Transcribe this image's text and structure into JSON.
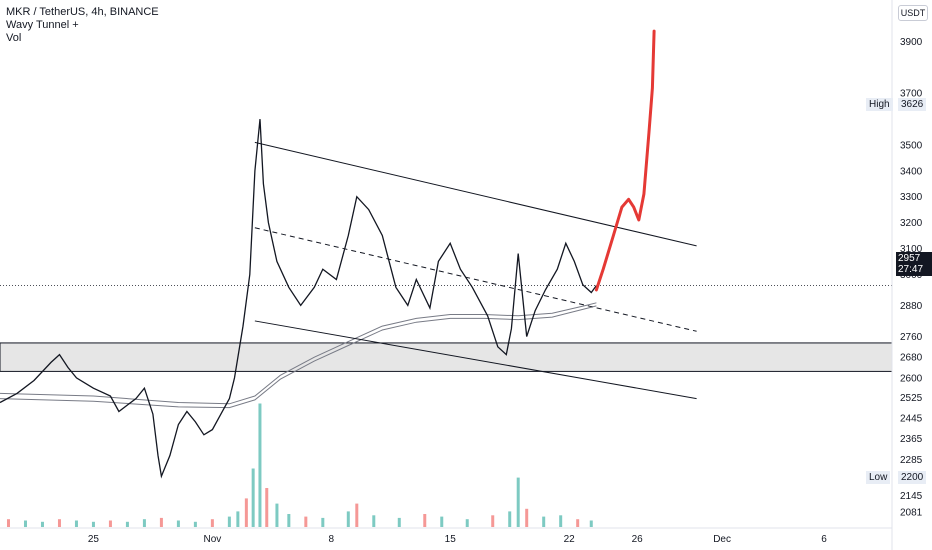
{
  "legend": {
    "symbol_line": "MKR / TetherUS, 4h, BINANCE",
    "indicator_1": "Wavy Tunnel +",
    "indicator_2": "Vol"
  },
  "currency_label": "USDT",
  "high_marker": {
    "label": "High",
    "value": "3626"
  },
  "low_marker": {
    "label": "Low",
    "value": "2200"
  },
  "last_price": {
    "value": "2957",
    "countdown": "27:47"
  },
  "colors": {
    "candle": "#131722",
    "volume_up": "#26a69a",
    "volume_down": "#ef5350",
    "tunnel": "#787b86",
    "drawing_red": "#e53935",
    "zone_fill": "#e0e0e0"
  },
  "chart_data": {
    "type": "line",
    "ylim": [
      2020,
      4060
    ],
    "y_ticks": [
      3900,
      3700,
      3500,
      3400,
      3300,
      3200,
      3100,
      3000,
      2880,
      2760,
      2680,
      2600,
      2525,
      2445,
      2365,
      2285,
      2145,
      2081
    ],
    "x_ticks": [
      "25",
      "Nov",
      "8",
      "15",
      "22",
      "26",
      "Dec",
      "6"
    ],
    "x_tick_days": [
      -7,
      0,
      7,
      14,
      21,
      25,
      30,
      36
    ],
    "x_range_days": [
      -12.5,
      40
    ],
    "price_path": [
      [
        -12.5,
        2505
      ],
      [
        -11.5,
        2540
      ],
      [
        -10.5,
        2590
      ],
      [
        -9.5,
        2660
      ],
      [
        -9.0,
        2690
      ],
      [
        -8.5,
        2640
      ],
      [
        -8.0,
        2600
      ],
      [
        -7.0,
        2560
      ],
      [
        -6.0,
        2530
      ],
      [
        -5.5,
        2470
      ],
      [
        -4.5,
        2520
      ],
      [
        -4.0,
        2560
      ],
      [
        -3.5,
        2460
      ],
      [
        -3.2,
        2300
      ],
      [
        -3.0,
        2220
      ],
      [
        -2.5,
        2300
      ],
      [
        -2.0,
        2420
      ],
      [
        -1.5,
        2470
      ],
      [
        -1.0,
        2430
      ],
      [
        -0.5,
        2380
      ],
      [
        0.0,
        2400
      ],
      [
        0.5,
        2460
      ],
      [
        1.0,
        2520
      ],
      [
        1.3,
        2600
      ],
      [
        1.8,
        2800
      ],
      [
        2.2,
        3000
      ],
      [
        2.5,
        3400
      ],
      [
        2.8,
        3600
      ],
      [
        3.0,
        3350
      ],
      [
        3.3,
        3200
      ],
      [
        3.8,
        3050
      ],
      [
        4.5,
        2950
      ],
      [
        5.2,
        2880
      ],
      [
        6.0,
        2950
      ],
      [
        6.5,
        3020
      ],
      [
        7.3,
        2980
      ],
      [
        8.0,
        3150
      ],
      [
        8.5,
        3300
      ],
      [
        9.2,
        3250
      ],
      [
        10.0,
        3150
      ],
      [
        10.8,
        2950
      ],
      [
        11.5,
        2880
      ],
      [
        12.0,
        2980
      ],
      [
        12.8,
        2870
      ],
      [
        13.3,
        3050
      ],
      [
        14.0,
        3120
      ],
      [
        14.6,
        3020
      ],
      [
        15.3,
        2950
      ],
      [
        16.2,
        2840
      ],
      [
        16.8,
        2720
      ],
      [
        17.3,
        2690
      ],
      [
        17.6,
        2790
      ],
      [
        18.0,
        3080
      ],
      [
        18.5,
        2760
      ],
      [
        19.0,
        2860
      ],
      [
        19.6,
        2940
      ],
      [
        20.3,
        3020
      ],
      [
        20.8,
        3120
      ],
      [
        21.3,
        3050
      ],
      [
        21.8,
        2960
      ],
      [
        22.3,
        2930
      ],
      [
        22.6,
        2957
      ]
    ],
    "tunnel_upper": [
      [
        -12.5,
        2540
      ],
      [
        -7.0,
        2530
      ],
      [
        -2.0,
        2505
      ],
      [
        1.0,
        2500
      ],
      [
        2.5,
        2530
      ],
      [
        4.0,
        2610
      ],
      [
        6.0,
        2680
      ],
      [
        8.0,
        2740
      ],
      [
        10.0,
        2800
      ],
      [
        12.0,
        2830
      ],
      [
        14.0,
        2845
      ],
      [
        16.0,
        2845
      ],
      [
        18.0,
        2840
      ],
      [
        20.0,
        2850
      ],
      [
        22.0,
        2880
      ],
      [
        22.6,
        2890
      ]
    ],
    "tunnel_lower": [
      [
        -12.5,
        2520
      ],
      [
        -7.0,
        2510
      ],
      [
        -2.0,
        2488
      ],
      [
        1.0,
        2485
      ],
      [
        2.5,
        2515
      ],
      [
        4.0,
        2595
      ],
      [
        6.0,
        2665
      ],
      [
        8.0,
        2725
      ],
      [
        10.0,
        2785
      ],
      [
        12.0,
        2815
      ],
      [
        14.0,
        2830
      ],
      [
        16.0,
        2830
      ],
      [
        18.0,
        2825
      ],
      [
        20.0,
        2835
      ],
      [
        22.0,
        2868
      ],
      [
        22.6,
        2878
      ]
    ],
    "channel_upper": [
      [
        2.5,
        3510
      ],
      [
        28.5,
        3110
      ]
    ],
    "channel_mid": [
      [
        2.5,
        3180
      ],
      [
        28.5,
        2780
      ]
    ],
    "channel_lower": [
      [
        2.5,
        2820
      ],
      [
        28.5,
        2520
      ]
    ],
    "zone": [
      2625,
      2735
    ],
    "forecast_path": [
      [
        22.6,
        2940
      ],
      [
        23.0,
        3020
      ],
      [
        23.6,
        3150
      ],
      [
        24.1,
        3260
      ],
      [
        24.5,
        3290
      ],
      [
        24.8,
        3260
      ],
      [
        25.1,
        3210
      ],
      [
        25.4,
        3310
      ],
      [
        25.7,
        3550
      ],
      [
        25.9,
        3720
      ],
      [
        26.0,
        3940
      ]
    ],
    "volume_series": {
      "max_volume": 100,
      "values": [
        [
          -12.0,
          6
        ],
        [
          -11.0,
          5
        ],
        [
          -10.0,
          4
        ],
        [
          -9.0,
          6
        ],
        [
          -8.0,
          5
        ],
        [
          -7.0,
          4
        ],
        [
          -6.0,
          5
        ],
        [
          -5.0,
          4
        ],
        [
          -4.0,
          6
        ],
        [
          -3.0,
          7
        ],
        [
          -2.0,
          5
        ],
        [
          -1.0,
          4
        ],
        [
          0.0,
          6
        ],
        [
          1.0,
          8
        ],
        [
          1.5,
          12
        ],
        [
          2.0,
          22
        ],
        [
          2.4,
          45
        ],
        [
          2.8,
          95
        ],
        [
          3.2,
          30
        ],
        [
          3.8,
          18
        ],
        [
          4.5,
          10
        ],
        [
          5.5,
          8
        ],
        [
          6.5,
          7
        ],
        [
          8.0,
          12
        ],
        [
          8.5,
          18
        ],
        [
          9.5,
          9
        ],
        [
          11.0,
          7
        ],
        [
          12.5,
          10
        ],
        [
          13.5,
          8
        ],
        [
          15.0,
          6
        ],
        [
          16.5,
          9
        ],
        [
          17.5,
          12
        ],
        [
          18.0,
          38
        ],
        [
          18.5,
          14
        ],
        [
          19.5,
          8
        ],
        [
          20.5,
          9
        ],
        [
          21.5,
          6
        ],
        [
          22.3,
          5
        ]
      ]
    }
  }
}
